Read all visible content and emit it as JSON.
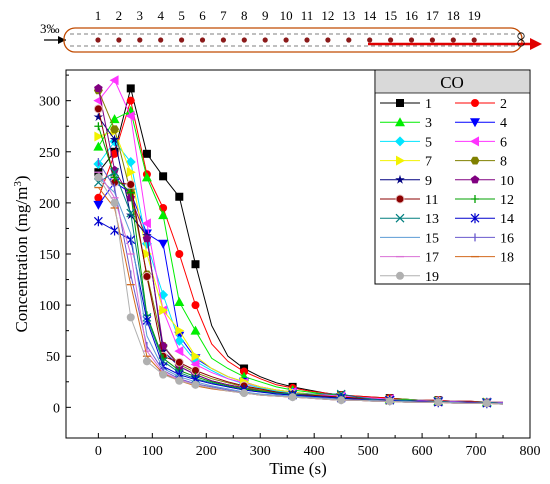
{
  "figure": {
    "schematic": {
      "inlet_label": "3‰",
      "sensor_numbers": [
        "1",
        "2",
        "3",
        "4",
        "5",
        "6",
        "7",
        "8",
        "9",
        "10",
        "11",
        "12",
        "13",
        "14",
        "15",
        "16",
        "17",
        "18",
        "19"
      ]
    },
    "legend_title": "CO"
  },
  "chart_data": {
    "type": "line",
    "title": "",
    "xlabel": "Time (s)",
    "ylabel": "Concentration (mg/m³)",
    "ylabel_parts": {
      "main": "Concentration (mg/m",
      "sup": "3",
      "end": ")"
    },
    "xlim": [
      -60,
      800
    ],
    "ylim": [
      -30,
      330
    ],
    "xticks": [
      "0",
      "100",
      "200",
      "300",
      "400",
      "500",
      "600",
      "700",
      "800"
    ],
    "yticks": [
      "0",
      "50",
      "100",
      "150",
      "200",
      "250",
      "300"
    ],
    "legend_position": "top-right",
    "grid": false,
    "series": [
      {
        "name": "1",
        "color": "#000000",
        "marker": "square",
        "x": [
          0,
          30,
          60,
          90,
          120,
          150,
          180,
          210,
          240,
          270,
          300,
          330,
          360,
          390,
          420,
          450,
          480,
          510,
          540,
          570,
          600,
          630,
          660,
          690,
          720,
          750
        ],
        "y": [
          230,
          250,
          312,
          248,
          226,
          206,
          140,
          80,
          50,
          38,
          30,
          24,
          20,
          17,
          14,
          12,
          11,
          10,
          9,
          8,
          7,
          7,
          6,
          6,
          5,
          5
        ]
      },
      {
        "name": "2",
        "color": "#ff0000",
        "marker": "circle",
        "x": [
          0,
          30,
          60,
          90,
          120,
          150,
          180,
          210,
          240,
          270,
          300,
          330,
          360,
          390,
          420,
          450,
          480,
          510,
          540,
          570,
          600,
          630,
          660,
          690,
          720,
          750
        ],
        "y": [
          205,
          248,
          300,
          228,
          195,
          150,
          100,
          62,
          45,
          35,
          28,
          22,
          19,
          16,
          14,
          12,
          11,
          10,
          9,
          8,
          7,
          7,
          6,
          6,
          5,
          5
        ]
      },
      {
        "name": "3",
        "color": "#00ee00",
        "marker": "triangle-up",
        "x": [
          0,
          30,
          60,
          90,
          120,
          150,
          180,
          210,
          240,
          270,
          300,
          330,
          360,
          390,
          420,
          450,
          480,
          510,
          540,
          570,
          600,
          630,
          660,
          690,
          720,
          750
        ],
        "y": [
          255,
          282,
          290,
          225,
          188,
          103,
          75,
          48,
          38,
          30,
          25,
          20,
          17,
          15,
          13,
          11,
          10,
          9,
          8,
          8,
          7,
          6,
          6,
          5,
          5,
          5
        ]
      },
      {
        "name": "4",
        "color": "#0000ff",
        "marker": "triangle-down",
        "x": [
          0,
          30,
          60,
          90,
          120,
          150,
          180,
          210,
          240,
          270,
          300,
          330,
          360,
          390,
          420,
          450,
          480,
          510,
          540,
          570,
          600,
          630,
          660,
          690,
          720,
          750
        ],
        "y": [
          198,
          220,
          210,
          170,
          160,
          70,
          48,
          38,
          30,
          25,
          20,
          17,
          15,
          13,
          11,
          10,
          9,
          8,
          7,
          7,
          6,
          6,
          5,
          5,
          5,
          4
        ]
      },
      {
        "name": "5",
        "color": "#00e5ff",
        "marker": "diamond",
        "x": [
          0,
          30,
          60,
          90,
          120,
          150,
          180,
          210,
          240,
          270,
          300,
          330,
          360,
          390,
          420,
          450,
          480,
          510,
          540,
          570,
          600,
          630,
          660,
          690,
          720,
          750
        ],
        "y": [
          238,
          260,
          240,
          160,
          110,
          65,
          45,
          36,
          28,
          23,
          19,
          16,
          14,
          12,
          11,
          10,
          9,
          8,
          7,
          7,
          6,
          6,
          5,
          5,
          5,
          4
        ]
      },
      {
        "name": "6",
        "color": "#ff33ff",
        "marker": "triangle-left",
        "x": [
          0,
          30,
          60,
          90,
          120,
          150,
          180,
          210,
          240,
          270,
          300,
          330,
          360,
          390,
          420,
          450,
          480,
          510,
          540,
          570,
          600,
          630,
          660,
          690,
          720,
          750
        ],
        "y": [
          300,
          320,
          285,
          180,
          95,
          55,
          42,
          34,
          28,
          24,
          20,
          17,
          15,
          13,
          12,
          11,
          10,
          9,
          8,
          7,
          7,
          6,
          6,
          5,
          5,
          5
        ]
      },
      {
        "name": "7",
        "color": "#f2f200",
        "marker": "triangle-right",
        "x": [
          0,
          30,
          60,
          90,
          120,
          150,
          180,
          210,
          240,
          270,
          300,
          330,
          360,
          390,
          420,
          450,
          480,
          510,
          540,
          570,
          600,
          630,
          660,
          690,
          720,
          750
        ],
        "y": [
          265,
          270,
          230,
          150,
          95,
          75,
          50,
          38,
          30,
          25,
          20,
          17,
          15,
          13,
          11,
          10,
          9,
          8,
          7,
          7,
          6,
          6,
          5,
          5,
          5,
          4
        ]
      },
      {
        "name": "8",
        "color": "#808000",
        "marker": "hexagon",
        "x": [
          0,
          30,
          60,
          90,
          120,
          150,
          180,
          210,
          240,
          270,
          300,
          330,
          360,
          390,
          420,
          450,
          480,
          510,
          540,
          570,
          600,
          630,
          660,
          690,
          720,
          750
        ],
        "y": [
          310,
          272,
          210,
          130,
          60,
          42,
          34,
          28,
          24,
          20,
          17,
          15,
          13,
          12,
          11,
          10,
          9,
          8,
          7,
          7,
          6,
          6,
          5,
          5,
          5,
          4
        ]
      },
      {
        "name": "9",
        "color": "#000080",
        "marker": "star",
        "x": [
          0,
          30,
          60,
          90,
          120,
          150,
          180,
          210,
          240,
          270,
          300,
          330,
          360,
          390,
          420,
          450,
          480,
          510,
          540,
          570,
          600,
          630,
          660,
          690,
          720,
          750
        ],
        "y": [
          284,
          262,
          188,
          168,
          55,
          40,
          32,
          26,
          22,
          19,
          16,
          14,
          12,
          11,
          10,
          9,
          8,
          7,
          7,
          6,
          6,
          5,
          5,
          5,
          4,
          4
        ]
      },
      {
        "name": "10",
        "color": "#800080",
        "marker": "pentagon",
        "x": [
          0,
          30,
          60,
          90,
          120,
          150,
          180,
          210,
          240,
          270,
          300,
          330,
          360,
          390,
          420,
          450,
          480,
          510,
          540,
          570,
          600,
          630,
          660,
          690,
          720,
          750
        ],
        "y": [
          312,
          232,
          205,
          165,
          60,
          40,
          32,
          26,
          22,
          19,
          16,
          14,
          12,
          11,
          10,
          9,
          8,
          7,
          7,
          6,
          6,
          5,
          5,
          5,
          4,
          4
        ]
      },
      {
        "name": "11",
        "color": "#8b0000",
        "marker": "sphere",
        "x": [
          0,
          30,
          60,
          90,
          120,
          150,
          180,
          210,
          240,
          270,
          300,
          330,
          360,
          390,
          420,
          450,
          480,
          510,
          540,
          570,
          600,
          630,
          660,
          690,
          720,
          750
        ],
        "y": [
          292,
          220,
          218,
          128,
          50,
          44,
          36,
          30,
          25,
          21,
          18,
          15,
          13,
          12,
          11,
          10,
          9,
          8,
          7,
          7,
          6,
          6,
          5,
          5,
          5,
          4
        ]
      },
      {
        "name": "12",
        "color": "#00a000",
        "marker": "plus",
        "x": [
          0,
          30,
          60,
          90,
          120,
          150,
          180,
          210,
          240,
          270,
          300,
          330,
          360,
          390,
          420,
          450,
          480,
          510,
          540,
          570,
          600,
          630,
          660,
          690,
          720,
          750
        ],
        "y": [
          275,
          225,
          210,
          90,
          48,
          36,
          30,
          25,
          21,
          18,
          16,
          14,
          12,
          11,
          10,
          9,
          8,
          7,
          7,
          6,
          6,
          5,
          5,
          5,
          4,
          4
        ]
      },
      {
        "name": "13",
        "color": "#007f7f",
        "marker": "x",
        "x": [
          0,
          30,
          60,
          90,
          120,
          150,
          180,
          210,
          240,
          270,
          300,
          330,
          360,
          390,
          420,
          450,
          480,
          510,
          540,
          570,
          600,
          630,
          660,
          690,
          720,
          750
        ],
        "y": [
          220,
          230,
          190,
          88,
          45,
          34,
          28,
          24,
          20,
          17,
          15,
          14,
          13,
          13,
          13,
          13,
          10,
          8,
          7,
          7,
          6,
          6,
          5,
          5,
          5,
          4
        ]
      },
      {
        "name": "14",
        "color": "#0000cd",
        "marker": "asterisk",
        "x": [
          0,
          30,
          60,
          90,
          120,
          150,
          180,
          210,
          240,
          270,
          300,
          330,
          360,
          390,
          420,
          450,
          480,
          510,
          540,
          570,
          600,
          630,
          660,
          690,
          720,
          750
        ],
        "y": [
          182,
          173,
          164,
          85,
          40,
          32,
          27,
          23,
          20,
          17,
          15,
          13,
          12,
          11,
          10,
          9,
          8,
          7,
          7,
          6,
          6,
          5,
          5,
          5,
          4,
          4
        ]
      },
      {
        "name": "15",
        "color": "#5b9bd5",
        "marker": "none",
        "x": [
          0,
          30,
          60,
          90,
          120,
          150,
          180,
          210,
          240,
          270,
          300,
          330,
          360,
          390,
          420,
          450,
          480,
          510,
          540,
          570,
          600,
          630,
          660,
          690,
          720,
          750
        ],
        "y": [
          225,
          210,
          170,
          70,
          38,
          30,
          25,
          21,
          18,
          15,
          13,
          12,
          11,
          10,
          9,
          8,
          7,
          7,
          6,
          6,
          5,
          5,
          5,
          4,
          4,
          4
        ]
      },
      {
        "name": "16",
        "color": "#6a5acd",
        "marker": "vline",
        "x": [
          0,
          30,
          60,
          90,
          120,
          150,
          180,
          210,
          240,
          270,
          300,
          330,
          360,
          390,
          420,
          450,
          480,
          510,
          540,
          570,
          600,
          630,
          660,
          690,
          720,
          750
        ],
        "y": [
          240,
          215,
          130,
          60,
          36,
          28,
          23,
          20,
          17,
          14,
          12,
          11,
          10,
          9,
          8,
          7,
          7,
          6,
          6,
          5,
          5,
          5,
          4,
          4,
          4,
          3
        ]
      },
      {
        "name": "17",
        "color": "#da70d6",
        "marker": "hline",
        "x": [
          0,
          30,
          60,
          90,
          120,
          150,
          180,
          210,
          240,
          270,
          300,
          330,
          360,
          390,
          420,
          450,
          480,
          510,
          540,
          570,
          600,
          630,
          660,
          690,
          720,
          750
        ],
        "y": [
          230,
          205,
          150,
          55,
          34,
          27,
          22,
          19,
          16,
          14,
          12,
          11,
          10,
          9,
          8,
          7,
          7,
          6,
          6,
          5,
          5,
          5,
          4,
          4,
          4,
          3
        ]
      },
      {
        "name": "18",
        "color": "#d2691e",
        "marker": "hline",
        "x": [
          0,
          30,
          60,
          90,
          120,
          150,
          180,
          210,
          240,
          270,
          300,
          330,
          360,
          390,
          420,
          450,
          480,
          510,
          540,
          570,
          600,
          630,
          660,
          690,
          720,
          750
        ],
        "y": [
          215,
          195,
          120,
          50,
          33,
          26,
          21,
          18,
          16,
          14,
          12,
          11,
          10,
          9,
          8,
          7,
          7,
          6,
          6,
          5,
          5,
          5,
          4,
          4,
          4,
          3
        ]
      },
      {
        "name": "19",
        "color": "#b0b0b0",
        "marker": "circle",
        "x": [
          0,
          30,
          60,
          90,
          120,
          150,
          180,
          210,
          240,
          270,
          300,
          330,
          360,
          390,
          420,
          450,
          480,
          510,
          540,
          570,
          600,
          630,
          660,
          690,
          720,
          750
        ],
        "y": [
          225,
          200,
          88,
          45,
          32,
          26,
          22,
          19,
          16,
          14,
          12,
          11,
          10,
          9,
          8,
          7,
          7,
          6,
          6,
          5,
          5,
          5,
          4,
          4,
          4,
          3
        ]
      }
    ]
  }
}
